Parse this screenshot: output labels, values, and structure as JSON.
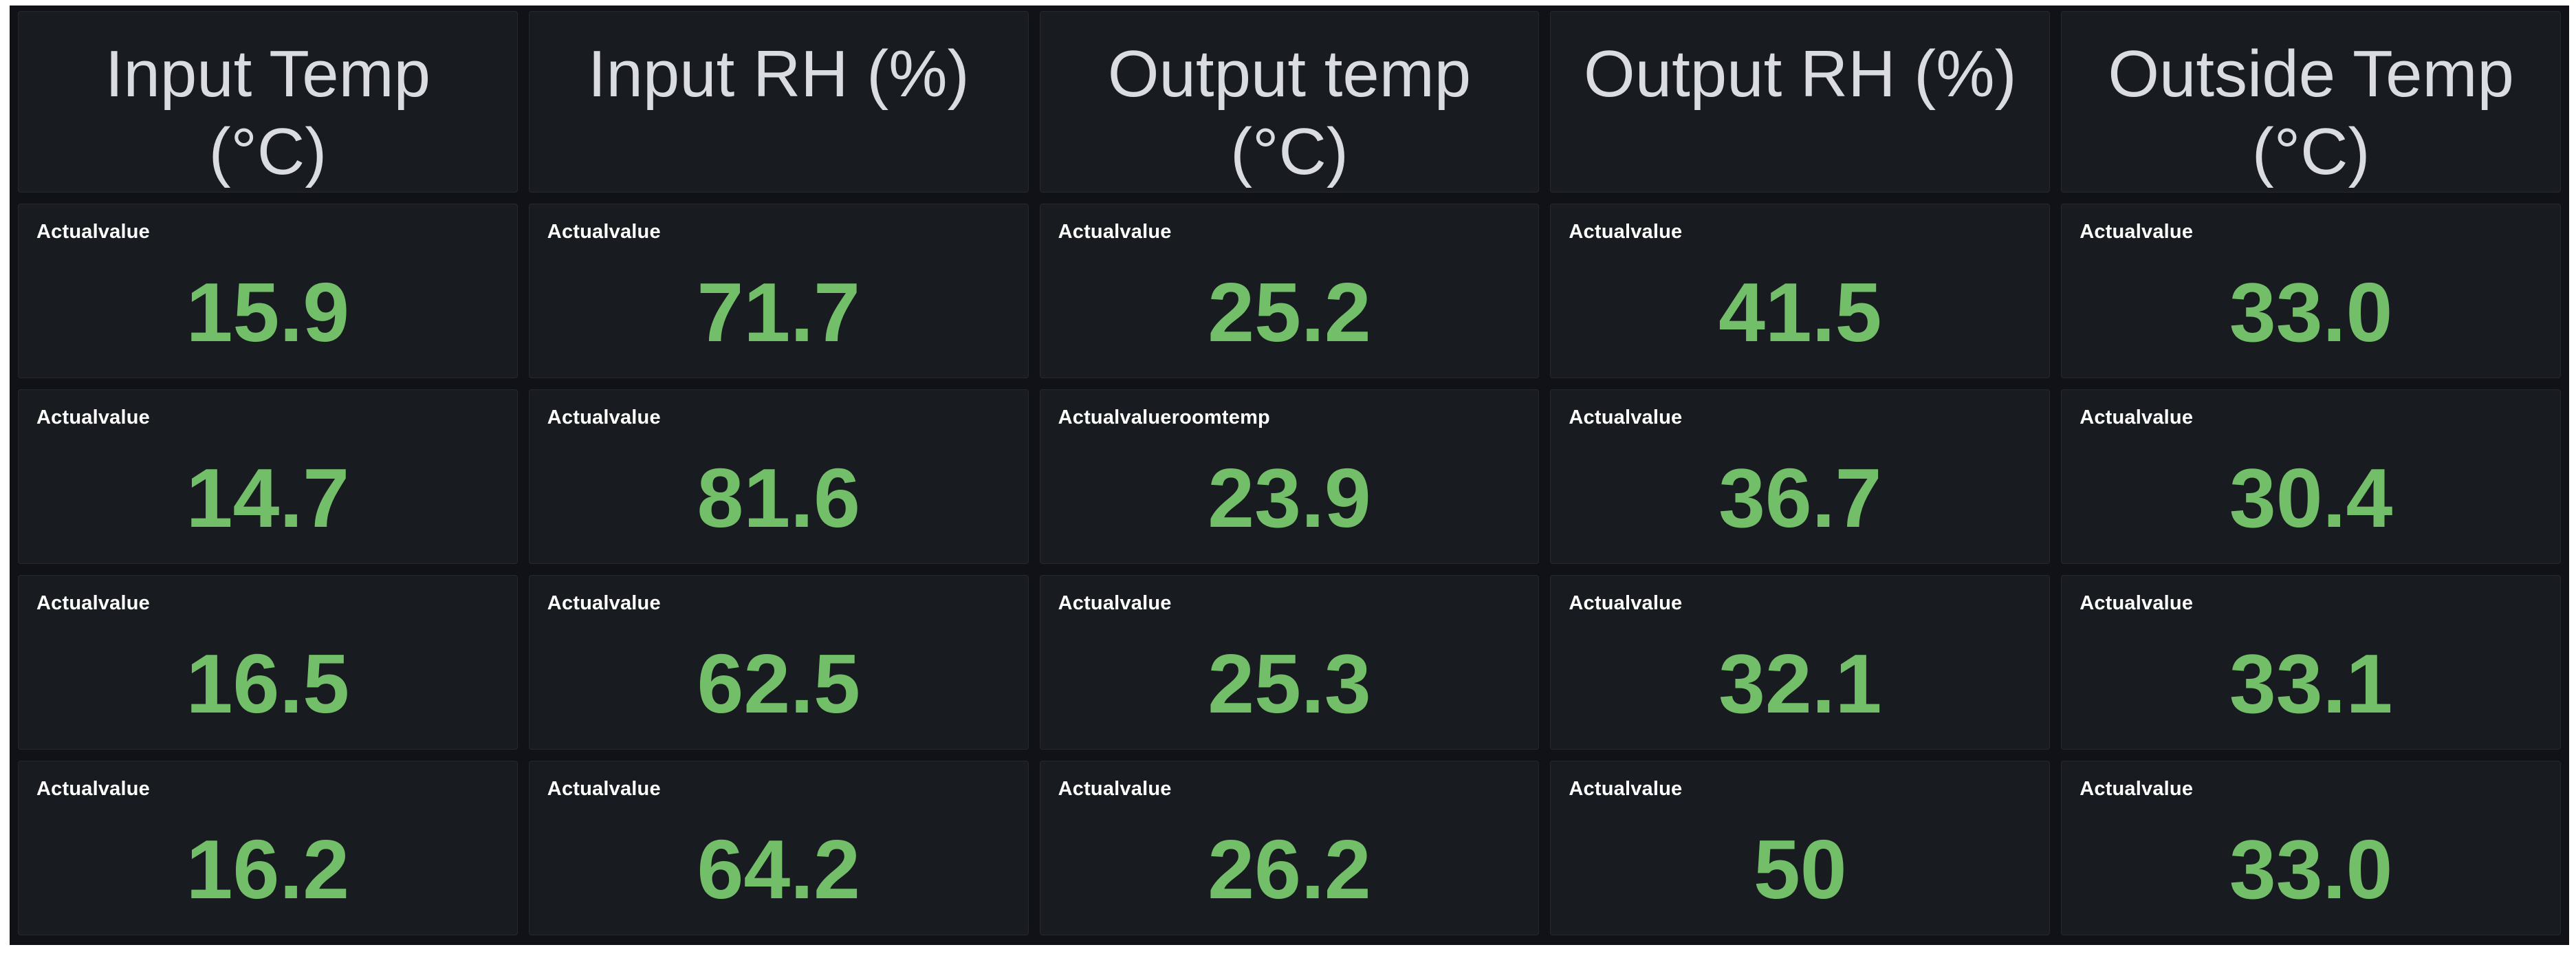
{
  "colors": {
    "page_bg": "#ffffff",
    "dashboard_bg": "#111217",
    "panel_bg": "#181b1f",
    "panel_border": "#26282e",
    "header_text": "#dadce1",
    "label_text": "#ffffff",
    "value_green": "#73bf69"
  },
  "headers": [
    "Input Temp (°C)",
    "Input RH (%)",
    "Output temp (°C)",
    "Output RH (%)",
    "Outside Temp (°C)"
  ],
  "rows": [
    [
      {
        "label": "Actualvalue",
        "value": "15.9"
      },
      {
        "label": "Actualvalue",
        "value": "71.7"
      },
      {
        "label": "Actualvalue",
        "value": "25.2"
      },
      {
        "label": "Actualvalue",
        "value": "41.5"
      },
      {
        "label": "Actualvalue",
        "value": "33.0"
      }
    ],
    [
      {
        "label": "Actualvalue",
        "value": "14.7"
      },
      {
        "label": "Actualvalue",
        "value": "81.6"
      },
      {
        "label": "Actualvalueroomtemp",
        "value": "23.9"
      },
      {
        "label": "Actualvalue",
        "value": "36.7"
      },
      {
        "label": "Actualvalue",
        "value": "30.4"
      }
    ],
    [
      {
        "label": "Actualvalue",
        "value": "16.5"
      },
      {
        "label": "Actualvalue",
        "value": "62.5"
      },
      {
        "label": "Actualvalue",
        "value": "25.3"
      },
      {
        "label": "Actualvalue",
        "value": "32.1"
      },
      {
        "label": "Actualvalue",
        "value": "33.1"
      }
    ],
    [
      {
        "label": "Actualvalue",
        "value": "16.2"
      },
      {
        "label": "Actualvalue",
        "value": "64.2"
      },
      {
        "label": "Actualvalue",
        "value": "26.2"
      },
      {
        "label": "Actualvalue",
        "value": "50"
      },
      {
        "label": "Actualvalue",
        "value": "33.0"
      }
    ]
  ]
}
